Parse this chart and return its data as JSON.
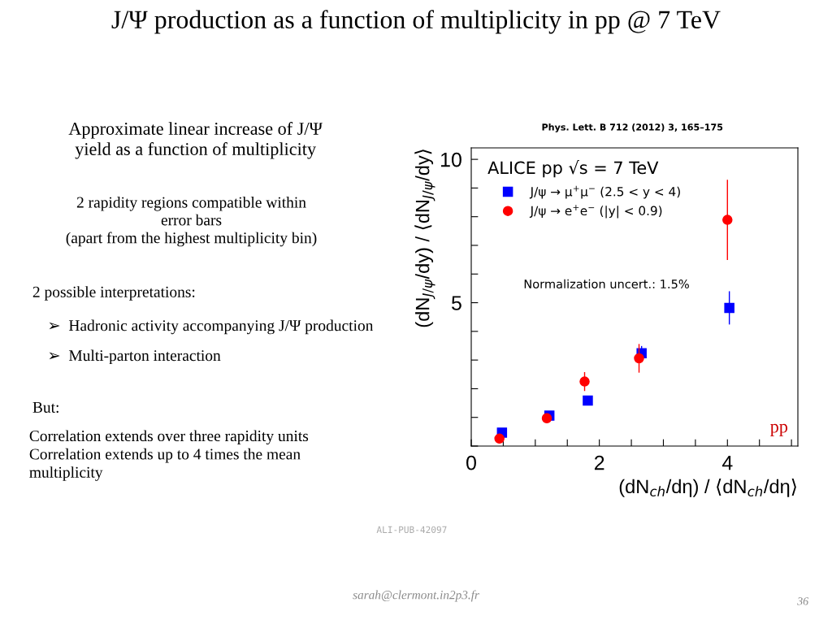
{
  "chart_data": {
    "type": "scatter",
    "title": "J/Ψ production as a function of multiplicity in pp @ 7 TeV",
    "xlabel": "(dN$_{ch}$/dη) / ⟨dN$_{ch}$/dη⟩",
    "ylabel": "(dN$_{J/ψ}$/dy) / ⟨dN$_{J/ψ}$/dy⟩",
    "series": [
      {
        "name": "J/ψ → μ$^{+}$μ$^{−}$ (2.5 < y < 4)",
        "color": "#0000ff",
        "marker": "square",
        "x": [
          0.48,
          1.22,
          1.82,
          2.66,
          4.03
        ],
        "values": [
          0.47,
          1.06,
          1.59,
          3.24,
          4.82
        ],
        "errors": [
          null,
          null,
          null,
          0.25,
          0.58
        ]
      },
      {
        "name": "J/ψ → e$^{+}$e$^{−}$ (|y| < 0.9)",
        "color": "#ff0000",
        "marker": "circle",
        "x": [
          0.44,
          1.18,
          1.77,
          2.62,
          4.0
        ],
        "values": [
          0.26,
          0.97,
          2.25,
          3.06,
          7.89
        ],
        "errors": [
          null,
          null,
          0.33,
          0.5,
          1.4
        ]
      }
    ],
    "xlim": [
      0,
      5.1
    ],
    "ylim": [
      0,
      10.4
    ],
    "xticks": [
      0,
      {
        "value": 0.5,
        "label": null
      },
      {
        "value": 1,
        "label": null
      },
      {
        "value": 1.5,
        "label": null
      },
      2,
      {
        "value": 2.5,
        "label": null
      },
      {
        "value": 3,
        "label": null
      },
      {
        "value": 3.5,
        "label": null
      },
      4,
      {
        "value": 4.5,
        "label": null
      },
      {
        "value": 5,
        "label": null
      }
    ],
    "yticks": [
      {
        "value": 0,
        "label": null
      },
      {
        "value": 1,
        "label": null
      },
      {
        "value": 2,
        "label": null
      },
      {
        "value": 3,
        "label": null
      },
      {
        "value": 4,
        "label": null
      },
      5,
      {
        "value": 6,
        "label": null
      },
      {
        "value": 7,
        "label": null
      },
      {
        "value": 8,
        "label": null
      },
      {
        "value": 9,
        "label": null
      },
      10
    ],
    "grid": false,
    "legend": "top left",
    "annotations": [
      "ALICE pp √s = 7 TeV",
      "Normalization uncert.: 1.5%",
      "pp",
      "Phys. Lett. B 712 (2012) 3, 165–175",
      "ALI-PUB-42097",
      "Approximate linear increase of J/Ψ\nyield as a function of multiplicity",
      "2 rapidity regions compatible within\nerror bars\n(apart from the highest multiplicity bin)",
      "2 possible interpretations:",
      "➢  Hadronic activity accompanying J/Ψ production",
      "➢  Multi-parton interaction",
      "But:",
      "Correlation extends over three rapidity units\nCorrelation extends up to 4 times the mean\nmultiplicity",
      "sarah@clermont.in2p3.fr",
      "36"
    ]
  }
}
